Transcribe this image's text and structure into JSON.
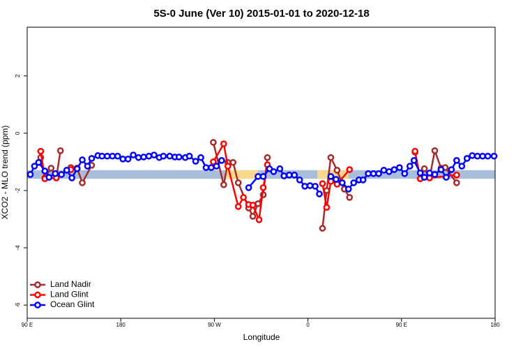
{
  "chart_data": {
    "type": "line",
    "title": "5S-0 June (Ver 10)   2015-01-01 to 2020-12-18",
    "x_label": "Longitude",
    "y_label": "XCO2 - MLO trend (ppm)",
    "xlim": [
      90,
      540
    ],
    "xticks": [
      {
        "value": 90,
        "label": "90 E"
      },
      180,
      {
        "value": 270,
        "label": "90 W"
      },
      {
        "value": 360,
        "label": "0"
      },
      {
        "value": 450,
        "label": "90 E"
      },
      {
        "value": 540,
        "label": "180"
      }
    ],
    "ylim": [
      -6.46,
      3.7
    ],
    "yticks": [
      -6,
      -4,
      -2,
      0,
      2
    ],
    "legend": "bottom-left",
    "bands": [
      {
        "xlim": [
          90,
          540
        ],
        "ylim": [
          -1.59,
          -1.29
        ],
        "color": "#a9bedb"
      },
      {
        "xlim": [
          280,
          312
        ],
        "ylim": [
          -1.59,
          -1.29
        ],
        "color": "#f8d98c"
      },
      {
        "xlim": [
          369,
          399
        ],
        "ylim": [
          -1.59,
          -1.29
        ],
        "color": "#f8d98c"
      }
    ],
    "series": [
      {
        "name": "Land Nadir",
        "color": "#a52a2a",
        "x": [
          103,
          107,
          113,
          118,
          122,
          null,
          132,
          138,
          143,
          152,
          null,
          269,
          279,
          283,
          288,
          293,
          303,
          307,
          312,
          317,
          321,
          null,
          374,
          378,
          382,
          388,
          395,
          400,
          null,
          463,
          468,
          472,
          477,
          482,
          488,
          492,
          503
        ],
        "values": [
          -0.85,
          -1.56,
          -1.22,
          -1.56,
          -0.61,
          null,
          -1.2,
          -1.22,
          -1.73,
          -1.12,
          null,
          -0.32,
          -1.8,
          -1.02,
          -1.02,
          -1.73,
          -2.61,
          -2.9,
          -2.46,
          -2.15,
          -0.85,
          null,
          -3.32,
          -2.0,
          -0.85,
          -1.29,
          -1.95,
          -2.24,
          null,
          -0.66,
          -1.59,
          -1.24,
          -1.56,
          -0.61,
          -1.22,
          -1.2,
          -1.73
        ]
      },
      {
        "name": "Land Glint",
        "color": "#ff0000",
        "x": [
          103,
          107,
          118,
          null,
          132,
          138,
          null,
          269,
          279,
          283,
          293,
          298,
          303,
          307,
          313,
          317,
          321,
          null,
          374,
          378,
          382,
          388,
          400,
          null,
          463,
          468,
          477,
          503
        ],
        "values": [
          -0.63,
          -1.59,
          -1.56,
          null,
          -1.27,
          -1.22,
          null,
          -1.0,
          -0.37,
          -1.15,
          -2.56,
          -2.24,
          -2.49,
          -2.51,
          -3.02,
          -1.9,
          -1.1,
          null,
          -1.76,
          -2.59,
          -1.68,
          -1.78,
          -1.27,
          null,
          -0.63,
          -1.59,
          -1.56,
          -1.46
        ]
      },
      {
        "name": "Ocean Glint",
        "color": "#0000ff",
        "x": [
          93,
          97,
          101,
          107,
          111,
          117,
          123,
          128,
          133,
          138,
          143,
          148,
          152,
          158,
          162,
          167,
          172,
          177,
          182,
          187,
          192,
          197,
          202,
          207,
          212,
          217,
          221,
          227,
          232,
          236,
          242,
          246,
          252,
          257,
          262,
          267,
          272,
          277,
          null,
          303,
          312,
          317,
          323,
          327,
          333,
          337,
          342,
          347,
          352,
          357,
          362,
          367,
          371,
          null,
          382,
          387,
          393,
          399,
          404,
          409,
          413,
          418,
          423,
          428,
          433,
          438,
          443,
          448,
          453,
          458,
          462,
          468,
          472,
          477,
          482,
          488,
          493,
          498,
          503,
          508,
          513,
          518,
          523,
          528,
          533,
          539
        ],
        "values": [
          -1.44,
          -1.15,
          -1.02,
          -1.32,
          -1.54,
          -1.41,
          -1.44,
          -1.29,
          -1.56,
          -1.24,
          -0.93,
          -1.15,
          -0.88,
          -0.78,
          -0.8,
          -0.8,
          -0.8,
          -0.8,
          -0.9,
          -0.9,
          -0.76,
          -0.85,
          -0.83,
          -0.8,
          -0.76,
          -0.85,
          -0.8,
          -0.8,
          -0.83,
          -0.83,
          -0.85,
          -0.8,
          -0.98,
          -0.85,
          -1.2,
          -1.2,
          -1.15,
          -0.95,
          null,
          -1.9,
          -1.51,
          -1.51,
          -1.24,
          -1.34,
          -1.24,
          -1.49,
          -1.46,
          -1.46,
          -1.63,
          -1.85,
          -1.83,
          -1.85,
          -2.12,
          null,
          -1.51,
          -1.61,
          -1.73,
          -1.95,
          -1.73,
          -1.63,
          -1.63,
          -1.41,
          -1.41,
          -1.41,
          -1.29,
          -1.34,
          -1.27,
          -1.2,
          -1.41,
          -1.15,
          -0.95,
          -1.39,
          -1.54,
          -1.39,
          -1.44,
          -1.27,
          -1.54,
          -1.27,
          -0.95,
          -1.15,
          -0.88,
          -0.78,
          -0.8,
          -0.8,
          -0.8,
          -0.8
        ]
      }
    ]
  }
}
